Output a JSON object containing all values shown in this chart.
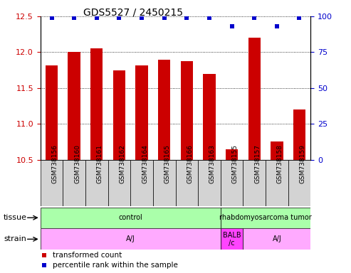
{
  "title": "GDS5527 / 2450215",
  "samples": [
    "GSM738156",
    "GSM738160",
    "GSM738161",
    "GSM738162",
    "GSM738164",
    "GSM738165",
    "GSM738166",
    "GSM738163",
    "GSM738155",
    "GSM738157",
    "GSM738158",
    "GSM738159"
  ],
  "bar_values": [
    11.82,
    12.0,
    12.05,
    11.75,
    11.82,
    11.9,
    11.88,
    11.7,
    10.65,
    12.2,
    10.75,
    11.2
  ],
  "percentile_values": [
    99,
    99,
    99,
    99,
    99,
    99,
    99,
    99,
    93,
    99,
    93,
    99
  ],
  "bar_color": "#cc0000",
  "percentile_color": "#0000cc",
  "ylim_left": [
    10.5,
    12.5
  ],
  "ylim_right": [
    0,
    100
  ],
  "yticks_left": [
    10.5,
    11.0,
    11.5,
    12.0,
    12.5
  ],
  "yticks_right": [
    0,
    25,
    50,
    75,
    100
  ],
  "xlabel_color": "#cc0000",
  "ylabel_right_color": "#0000cc",
  "bar_width": 0.55,
  "base_value": 10.5,
  "tissue_labels": [
    "control",
    "rhabdomyosarcoma tumor"
  ],
  "tissue_starts": [
    0,
    8
  ],
  "tissue_ends": [
    8,
    12
  ],
  "tissue_colors": [
    "#aaffaa",
    "#aaffaa"
  ],
  "strain_labels": [
    "A/J",
    "BALB\n/c",
    "A/J"
  ],
  "strain_starts": [
    0,
    8,
    9
  ],
  "strain_ends": [
    8,
    9,
    12
  ],
  "strain_colors": [
    "#ffaaff",
    "#ff44ff",
    "#ffaaff"
  ],
  "xtick_bg": "#d3d3d3",
  "legend_items": [
    {
      "color": "#cc0000",
      "label": "transformed count"
    },
    {
      "color": "#0000cc",
      "label": "percentile rank within the sample"
    }
  ]
}
